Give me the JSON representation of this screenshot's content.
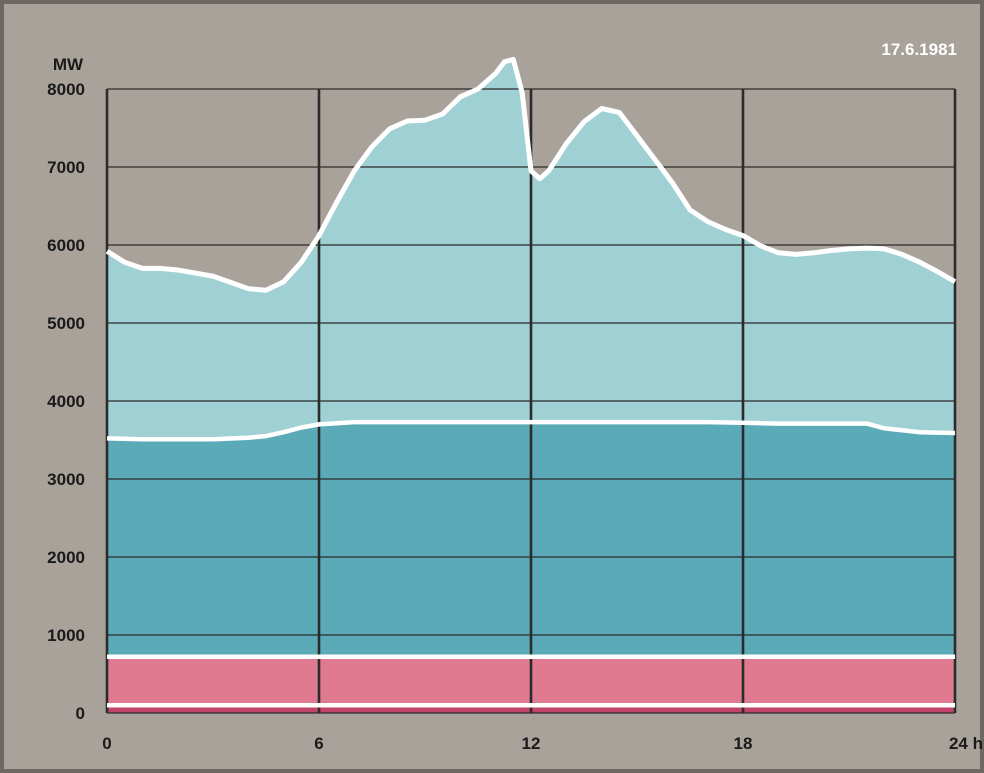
{
  "chart_data": {
    "type": "area",
    "date_label": "17.6.1981",
    "y_unit_label": "MW",
    "x_unit_label": "h",
    "x_ticks": [
      0,
      6,
      12,
      18,
      24
    ],
    "x_tick_labels": [
      "0",
      "6",
      "12",
      "18",
      "24 h"
    ],
    "y_ticks": [
      0,
      1000,
      2000,
      3000,
      4000,
      5000,
      6000,
      7000,
      8000
    ],
    "y_tick_labels": [
      "0",
      "1000",
      "2000",
      "3000",
      "4000",
      "5000",
      "6000",
      "7000",
      "8000"
    ],
    "xlim": [
      0,
      24
    ],
    "ylim": [
      0,
      8000
    ],
    "grid": true,
    "colors": {
      "background": "#a8a29b",
      "frame": "#6d6863",
      "top_band": "#9fd0d4",
      "middle_band": "#5aaab7",
      "lower_band": "#e07a91",
      "bottom_band": "#c2436a",
      "separator": "#ffffff",
      "grid": "#2b2b2b",
      "text": "#1a1a1a"
    },
    "series": [
      {
        "x": [
          0,
          0.5,
          1,
          1.5,
          2,
          2.5,
          3,
          3.5,
          4,
          4.5,
          5,
          5.5,
          6,
          6.5,
          7,
          7.5,
          8,
          8.5,
          9,
          9.5,
          10,
          10.5,
          11,
          11.25,
          11.5,
          11.75,
          12,
          12.25,
          12.5,
          13,
          13.5,
          14,
          14.5,
          15,
          15.5,
          16,
          16.5,
          17,
          17.5,
          18,
          18.5,
          19,
          19.5,
          20,
          20.5,
          21,
          21.5,
          22,
          22.5,
          23,
          23.5,
          24
        ],
        "values": [
          5920,
          5780,
          5700,
          5700,
          5680,
          5640,
          5600,
          5520,
          5440,
          5420,
          5530,
          5780,
          6120,
          6550,
          6950,
          7260,
          7490,
          7590,
          7600,
          7680,
          7900,
          8000,
          8200,
          8350,
          8380,
          7950,
          6950,
          6850,
          6950,
          7300,
          7580,
          7750,
          7700,
          7400,
          7100,
          6800,
          6450,
          6300,
          6200,
          6120,
          5990,
          5900,
          5880,
          5900,
          5930,
          5950,
          5960,
          5950,
          5880,
          5780,
          5660,
          5530
        ]
      },
      {
        "x": [
          0,
          1,
          2,
          3,
          4,
          4.5,
          5,
          5.5,
          6,
          7,
          8,
          9,
          10,
          11,
          12,
          13,
          14,
          15,
          16,
          17,
          18,
          19,
          20,
          21,
          21.5,
          22,
          23,
          24
        ],
        "values": [
          3520,
          3510,
          3510,
          3510,
          3530,
          3550,
          3600,
          3660,
          3700,
          3730,
          3730,
          3730,
          3730,
          3730,
          3730,
          3730,
          3730,
          3730,
          3730,
          3730,
          3720,
          3710,
          3710,
          3710,
          3710,
          3650,
          3600,
          3590
        ]
      },
      {
        "x": [
          0,
          24
        ],
        "values": [
          720,
          720
        ]
      },
      {
        "x": [
          0,
          24
        ],
        "values": [
          100,
          100
        ]
      }
    ]
  }
}
